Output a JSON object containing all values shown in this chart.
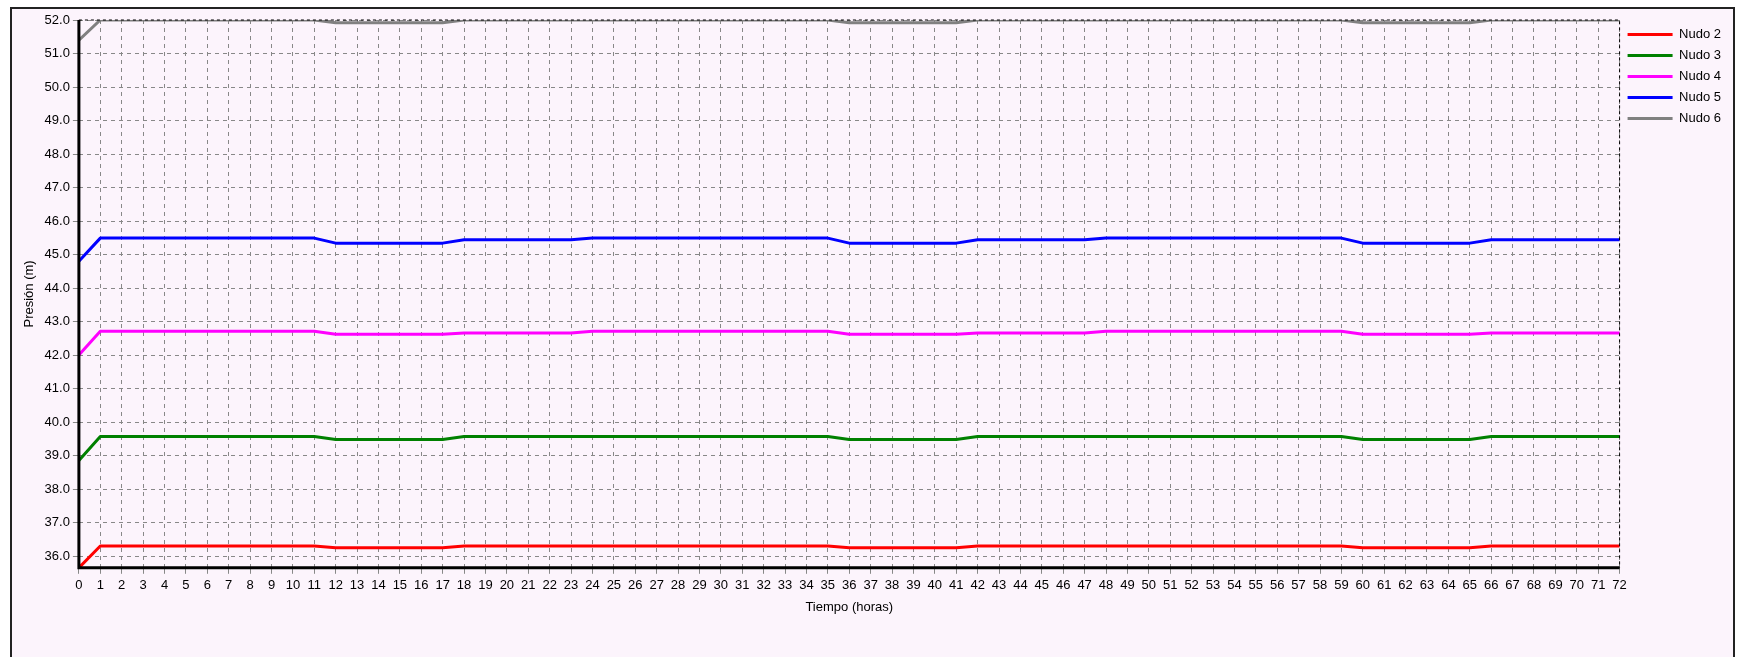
{
  "chart_data": {
    "type": "line",
    "xlabel": "Tiempo (horas)",
    "ylabel": "Presión (m)",
    "x": [
      0,
      1,
      11,
      12,
      17,
      18,
      23,
      24,
      35,
      36,
      41,
      42,
      47,
      48,
      59,
      60,
      65,
      66,
      72
    ],
    "series": [
      {
        "name": "Nudo 2",
        "color": "#ff0000",
        "values": [
          35.65,
          36.3,
          36.3,
          36.25,
          36.25,
          36.3,
          36.3,
          36.3,
          36.3,
          36.25,
          36.25,
          36.3,
          36.3,
          36.3,
          36.3,
          36.25,
          36.25,
          36.3,
          36.3
        ]
      },
      {
        "name": "Nudo 3",
        "color": "#008000",
        "values": [
          38.85,
          39.57,
          39.57,
          39.48,
          39.48,
          39.57,
          39.57,
          39.57,
          39.57,
          39.48,
          39.48,
          39.57,
          39.57,
          39.57,
          39.57,
          39.48,
          39.48,
          39.57,
          39.57
        ]
      },
      {
        "name": "Nudo 4",
        "color": "#ff00ff",
        "values": [
          42.0,
          42.71,
          42.71,
          42.62,
          42.62,
          42.66,
          42.66,
          42.71,
          42.71,
          42.62,
          42.62,
          42.66,
          42.66,
          42.71,
          42.71,
          42.62,
          42.62,
          42.66,
          42.66
        ]
      },
      {
        "name": "Nudo 5",
        "color": "#0000ff",
        "values": [
          44.8,
          45.49,
          45.49,
          45.34,
          45.34,
          45.44,
          45.44,
          45.49,
          45.49,
          45.34,
          45.34,
          45.44,
          45.44,
          45.49,
          45.49,
          45.34,
          45.34,
          45.44,
          45.44
        ]
      },
      {
        "name": "Nudo 6",
        "color": "#808080",
        "values": [
          51.4,
          52.0,
          52.0,
          51.92,
          51.92,
          52.0,
          52.0,
          52.0,
          52.0,
          51.92,
          51.92,
          52.0,
          52.0,
          52.0,
          52.0,
          51.92,
          51.92,
          52.0,
          52.0
        ]
      }
    ],
    "xlim": [
      0,
      72
    ],
    "xticks": [
      0,
      1,
      2,
      3,
      4,
      5,
      6,
      7,
      8,
      9,
      10,
      11,
      12,
      13,
      14,
      15,
      16,
      17,
      18,
      19,
      20,
      21,
      22,
      23,
      24,
      25,
      26,
      27,
      28,
      29,
      30,
      31,
      32,
      33,
      34,
      35,
      36,
      37,
      38,
      39,
      40,
      41,
      42,
      43,
      44,
      45,
      46,
      47,
      48,
      49,
      50,
      51,
      52,
      53,
      54,
      55,
      56,
      57,
      58,
      59,
      60,
      61,
      62,
      63,
      64,
      65,
      66,
      67,
      68,
      69,
      70,
      71,
      72
    ],
    "ylim": [
      35.65,
      52
    ],
    "yticks": [
      {
        "value": 36,
        "label": "36.0"
      },
      {
        "value": 37,
        "label": "37.0"
      },
      {
        "value": 38,
        "label": "38.0"
      },
      {
        "value": 39,
        "label": "39.0"
      },
      {
        "value": 40,
        "label": "40.0"
      },
      {
        "value": 41,
        "label": "41.0"
      },
      {
        "value": 42,
        "label": "42.0"
      },
      {
        "value": 43,
        "label": "43.0"
      },
      {
        "value": 44,
        "label": "44.0"
      },
      {
        "value": 45,
        "label": "45.0"
      },
      {
        "value": 46,
        "label": "46.0"
      },
      {
        "value": 47,
        "label": "47.0"
      },
      {
        "value": 48,
        "label": "48.0"
      },
      {
        "value": 49,
        "label": "49.0"
      },
      {
        "value": 50,
        "label": "50.0"
      },
      {
        "value": 51,
        "label": "51.0"
      },
      {
        "value": 52,
        "label": "52.0"
      }
    ],
    "grid": true,
    "legend": "top right",
    "marker": "none",
    "line_style": "solid"
  }
}
